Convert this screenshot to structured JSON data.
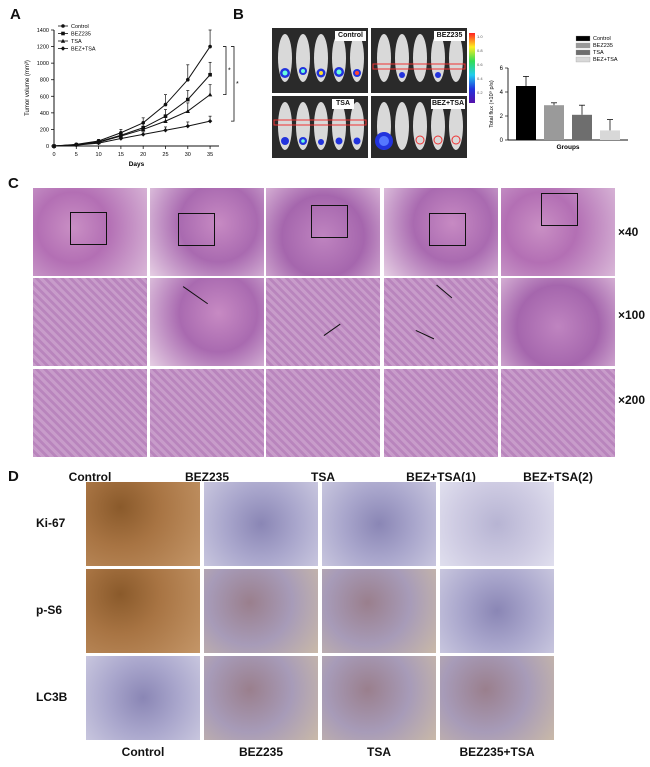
{
  "panels": {
    "a": "A",
    "b": "B",
    "c": "C",
    "d": "D"
  },
  "chart_data": [
    {
      "type": "line",
      "title": "",
      "xlabel": "Days",
      "ylabel": "Tumor volume (mm³)",
      "x": [
        0,
        5,
        10,
        15,
        20,
        25,
        30,
        35
      ],
      "xticks": [
        "0",
        "5",
        "10",
        "15",
        "20",
        "25",
        "30",
        "35"
      ],
      "yticks": [
        "0",
        "200",
        "400",
        "600",
        "800",
        "1000",
        "1200",
        "1400"
      ],
      "ylim": [
        0,
        1400
      ],
      "xlim": [
        0,
        37
      ],
      "legend_position": "top-left",
      "series": [
        {
          "name": "Control",
          "values": [
            0,
            20,
            60,
            160,
            280,
            500,
            800,
            1200
          ],
          "err": [
            0,
            10,
            20,
            40,
            60,
            120,
            180,
            200
          ]
        },
        {
          "name": "BEZ235",
          "values": [
            0,
            15,
            50,
            130,
            220,
            360,
            560,
            860
          ],
          "err": [
            0,
            8,
            15,
            30,
            50,
            80,
            110,
            150
          ]
        },
        {
          "name": "TSA",
          "values": [
            0,
            15,
            45,
            120,
            200,
            300,
            420,
            620
          ],
          "err": [
            0,
            8,
            15,
            30,
            40,
            70,
            100,
            120
          ]
        },
        {
          "name": "BEZ+TSA",
          "values": [
            0,
            10,
            35,
            90,
            140,
            190,
            240,
            300
          ],
          "err": [
            0,
            5,
            10,
            20,
            30,
            40,
            50,
            60
          ]
        }
      ],
      "annotations": [
        "*",
        "*"
      ]
    },
    {
      "type": "bar",
      "title": "",
      "xlabel": "Groups",
      "ylabel": "Total flux (×10⁹ p/s)",
      "categories": [
        "Control",
        "BEZ235",
        "TSA",
        "BEZ+TSA"
      ],
      "values": [
        4.5,
        2.9,
        2.1,
        0.8
      ],
      "err": [
        0.8,
        0.2,
        0.8,
        0.9
      ],
      "yticks": [
        "0",
        "2",
        "4",
        "6"
      ],
      "ylim": [
        0,
        6
      ],
      "colors": [
        "#000000",
        "#9a9a9a",
        "#6e6e6e",
        "#d8d8d8"
      ],
      "legend_position": "top-right"
    }
  ],
  "imaging": {
    "groups": [
      "Control",
      "BEZ235",
      "TSA",
      "BEZ+TSA"
    ],
    "scale_ticks": [
      "1.0",
      "0.8",
      "0.6",
      "0.4",
      "0.2"
    ]
  },
  "he": {
    "columns": [
      "Control",
      "BEZ235",
      "TSA",
      "BEZ+TSA(1)",
      "BEZ+TSA(2)"
    ],
    "magnifications": [
      "×40",
      "×100",
      "×200"
    ]
  },
  "ihc": {
    "columns": [
      "Control",
      "BEZ235",
      "TSA",
      "BEZ235+TSA"
    ],
    "rows": [
      "Ki-67",
      "p-S6",
      "LC3B"
    ]
  },
  "colors": {
    "he_pink": "#c28bc2",
    "ihc_brown": "#9a6534",
    "ihc_blue": "#a9a6cc"
  }
}
